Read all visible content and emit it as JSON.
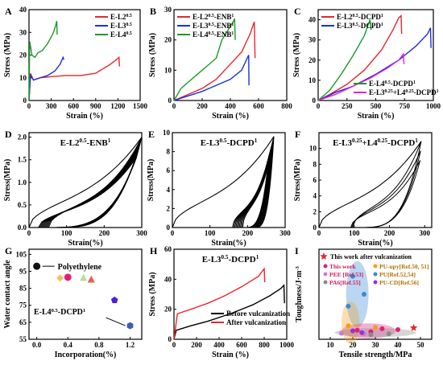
{
  "panels": {
    "A": {
      "letter": "A",
      "xlabel": "Strain (%)",
      "ylabel": "Stress (MPa)",
      "xticks": [
        "0",
        "300",
        "600",
        "900",
        "1200",
        "1500"
      ],
      "yticks": [
        "0",
        "10",
        "20",
        "30",
        "40"
      ],
      "legend": [
        {
          "label": "E-L2",
          "sup": "0.5",
          "color": "#e8262a"
        },
        {
          "label": "E-L3",
          "sup": "0.5",
          "color": "#1f2fd6"
        },
        {
          "label": "E-L4",
          "sup": "0.5",
          "color": "#1a9a26"
        }
      ]
    },
    "B": {
      "letter": "B",
      "xlabel": "Strain (%)",
      "ylabel": "Stress (MPa)",
      "xticks": [
        "0",
        "200",
        "400",
        "600",
        "800"
      ],
      "yticks": [
        "0",
        "10",
        "20",
        "30"
      ],
      "legend": [
        {
          "label": "E-L2",
          "sup": "0.5",
          "tail": "-ENB",
          "sup2": "1",
          "color": "#e8262a"
        },
        {
          "label": "E-L3",
          "sup": "0.5",
          "tail": "-ENB",
          "sup2": "1",
          "color": "#1f2fd6"
        },
        {
          "label": "E-L4",
          "sup": "0.5",
          "tail": "-ENB",
          "sup2": "1",
          "color": "#1a9a26"
        }
      ]
    },
    "C": {
      "letter": "C",
      "xlabel": "Strain (%)",
      "ylabel": "Stress (MPa)",
      "xticks": [
        "0",
        "250",
        "500",
        "750",
        "1000"
      ],
      "yticks": [
        "0",
        "10",
        "20",
        "30",
        "40"
      ],
      "legend": [
        {
          "label": "E-L2",
          "sup": "0.5",
          "tail": "-DCPD",
          "sup2": "1",
          "color": "#e8262a"
        },
        {
          "label": "E-L3",
          "sup": "0.5",
          "tail": "-DCPD",
          "sup2": "1",
          "color": "#1f2fd6"
        },
        {
          "label": "E-L4",
          "sup": "0.5",
          "tail": "-DCPD",
          "sup2": "1",
          "color": "#1a9a26"
        },
        {
          "label": "E-L3",
          "sup": "0.25",
          "tail": "+L4",
          "sup2": "0.25",
          "tail2": "-DCPD",
          "sup3": "1",
          "color": "#e020e0"
        }
      ]
    },
    "D": {
      "letter": "D",
      "title": "E-L2",
      "title_sup": "0.5",
      "title_tail": "-ENB",
      "title_sup2": "1",
      "xlabel": "Strain(%)",
      "ylabel": "Stress(MPa)",
      "xticks": [
        "0",
        "100",
        "200",
        "300"
      ],
      "yticks": [
        "0.0",
        "0.5",
        "1.0",
        "1.5",
        "2.0"
      ]
    },
    "E": {
      "letter": "E",
      "title": "E-L3",
      "title_sup": "0.5",
      "title_tail": "-DCPD",
      "title_sup2": "1",
      "xlabel": "Strain(%)",
      "ylabel": "Stress(MPa)",
      "xticks": [
        "0",
        "100",
        "200",
        "300"
      ],
      "yticks": [
        "0",
        "2",
        "4",
        "6",
        "8",
        "10"
      ]
    },
    "F": {
      "letter": "F",
      "title": "E-L3",
      "title_sup": "0.25",
      "title_tail": "+L4",
      "title_sup2": "0.25",
      "title_tail2": "-DCPD",
      "title_sup3": "1",
      "xlabel": "Strain(%)",
      "ylabel": "Stress(MPa)",
      "xticks": [
        "0",
        "100",
        "200",
        "300"
      ],
      "yticks": [
        "0",
        "2",
        "4",
        "6",
        "8",
        "10"
      ]
    },
    "G": {
      "letter": "G",
      "xlabel": "Incorporation(%)",
      "ylabel": "Water contact angle",
      "xticks": [
        "0.0",
        "0.4",
        "0.8",
        "1.2"
      ],
      "yticks": [
        "55",
        "65",
        "75",
        "85",
        "95",
        "105"
      ],
      "annotation_pe": "Polyethylene",
      "annotation_l4": "E-L4",
      "annotation_l4_sup": "0.5",
      "annotation_l4_tail": "-DCPD",
      "annotation_l4_sup2": "1"
    },
    "H": {
      "letter": "H",
      "title": "E-L3",
      "title_sup": "0.5",
      "title_tail": "-DCPD",
      "title_sup2": "1",
      "xlabel": "Strain (%)",
      "ylabel": "Stress (MPa)",
      "xticks": [
        "0",
        "200",
        "400",
        "600",
        "800",
        "1000"
      ],
      "yticks": [
        "0",
        "20",
        "40",
        "60"
      ],
      "legend": [
        {
          "label": "Before vulcanization",
          "color": "#000000"
        },
        {
          "label": "After vulcanization",
          "color": "#e8262a"
        }
      ]
    },
    "I": {
      "letter": "I",
      "xlabel": "Tensile strength/MPa",
      "ylabel": "Toughness/J·m",
      "ylabel_sup": "-3",
      "xticks": [
        "10",
        "20",
        "30",
        "40",
        "50"
      ],
      "star_label": "This work after vulcanization",
      "legend": [
        {
          "label": "This work",
          "color": "#e0207a"
        },
        {
          "label": "PU-upy[Ref.50, 51]",
          "color": "#f0a020"
        },
        {
          "label": "PEE [Ref.53]",
          "color": "#d07ad0"
        },
        {
          "label": "PU[Ref.52,54]",
          "color": "#3a8ad8"
        },
        {
          "label": "PA6[Ref.55]",
          "color": "#8a8a8a"
        },
        {
          "label": "PU-CD[Ref.56]",
          "color": "#9a30d8"
        }
      ]
    }
  },
  "chart_data": [
    {
      "panel": "A",
      "type": "line",
      "xlim": [
        0,
        1500
      ],
      "ylim": [
        0,
        40
      ],
      "series": [
        {
          "name": "E-L2^0.5",
          "color": "#e8262a",
          "x": [
            0,
            20,
            60,
            150,
            300,
            500,
            700,
            900,
            1000,
            1100,
            1180,
            1215,
            1220
          ],
          "y": [
            0,
            12,
            9,
            10,
            10.5,
            11,
            11,
            12,
            14,
            16,
            18,
            19,
            15
          ]
        },
        {
          "name": "E-L3^0.5",
          "color": "#1f2fd6",
          "x": [
            0,
            20,
            60,
            150,
            250,
            350,
            420,
            460,
            470
          ],
          "y": [
            0,
            11,
            9,
            10,
            11,
            13,
            16,
            19,
            18
          ]
        },
        {
          "name": "E-L4^0.5",
          "color": "#1a9a26",
          "x": [
            0,
            10,
            40,
            80,
            120,
            180,
            250,
            300,
            330,
            360,
            375,
            380
          ],
          "y": [
            0,
            26,
            20,
            19,
            21,
            22,
            25,
            28,
            30,
            33,
            35,
            29
          ]
        }
      ]
    },
    {
      "panel": "B",
      "type": "line",
      "xlim": [
        0,
        800
      ],
      "ylim": [
        0,
        30
      ],
      "series": [
        {
          "name": "E-L2^0.5-ENB^1",
          "color": "#e8262a",
          "x": [
            0,
            100,
            200,
            300,
            400,
            480,
            540,
            570,
            575
          ],
          "y": [
            0,
            2,
            4,
            7,
            12,
            16,
            22,
            26,
            14
          ]
        },
        {
          "name": "E-L3^0.5-ENB^1",
          "color": "#1f2fd6",
          "x": [
            0,
            100,
            200,
            300,
            400,
            480,
            520,
            530,
            532
          ],
          "y": [
            0,
            1.5,
            3,
            5,
            7,
            10,
            14,
            15,
            5
          ]
        },
        {
          "name": "E-L4^0.5-ENB^1",
          "color": "#1a9a26",
          "x": [
            0,
            50,
            100,
            200,
            300,
            340,
            380,
            420,
            430,
            435
          ],
          "y": [
            0,
            4,
            6,
            10,
            14,
            20,
            23,
            26,
            27,
            20
          ]
        }
      ]
    },
    {
      "panel": "C",
      "type": "line",
      "xlim": [
        0,
        1000
      ],
      "ylim": [
        0,
        45
      ],
      "series": [
        {
          "name": "E-L2^0.5-DCPD^1",
          "color": "#e8262a",
          "x": [
            0,
            100,
            250,
            400,
            550,
            650,
            700,
            720,
            725
          ],
          "y": [
            0,
            3,
            8,
            15,
            25,
            35,
            41,
            42,
            33
          ]
        },
        {
          "name": "E-L3^0.5-DCPD^1",
          "color": "#1f2fd6",
          "x": [
            0,
            150,
            300,
            500,
            700,
            850,
            950,
            975,
            980
          ],
          "y": [
            0,
            4,
            7,
            13,
            20,
            27,
            33,
            36,
            26
          ]
        },
        {
          "name": "E-L4^0.5-DCPD^1",
          "color": "#1a9a26",
          "x": [
            0,
            100,
            200,
            300,
            400,
            450,
            460
          ],
          "y": [
            0,
            5,
            13,
            22,
            32,
            40,
            35
          ]
        },
        {
          "name": "E-L3^0.25+L4^0.25-DCPD^1",
          "color": "#e020e0",
          "x": [
            0,
            150,
            300,
            450,
            600,
            700,
            740,
            745
          ],
          "y": [
            0,
            3,
            7,
            11,
            16,
            20,
            23,
            18
          ]
        }
      ]
    },
    {
      "panel": "D",
      "type": "line",
      "xlim": [
        0,
        300
      ],
      "ylim": [
        0,
        2.1
      ],
      "note": "cyclic loading, ~10 loops",
      "series": [
        {
          "name": "loading-unloading cycles",
          "color": "#000000",
          "x": [
            0,
            20,
            100,
            200,
            280,
            300
          ],
          "y": [
            0,
            0.7,
            0.85,
            1.1,
            1.6,
            2.0
          ]
        }
      ]
    },
    {
      "panel": "E",
      "type": "line",
      "xlim": [
        0,
        300
      ],
      "ylim": [
        0,
        10
      ],
      "note": "cyclic loading, ~10 loops",
      "series": [
        {
          "name": "loading-unloading cycles",
          "color": "#000000",
          "x": [
            0,
            20,
            100,
            200,
            250,
            270
          ],
          "y": [
            0,
            3.5,
            5,
            6.5,
            8.2,
            9.6
          ]
        }
      ]
    },
    {
      "panel": "F",
      "type": "line",
      "xlim": [
        0,
        320
      ],
      "ylim": [
        0,
        12
      ],
      "note": "cyclic loading, ~3 loops",
      "series": [
        {
          "name": "loading-unloading cycles",
          "color": "#000000",
          "x": [
            0,
            20,
            100,
            200,
            260,
            290
          ],
          "y": [
            0,
            2.5,
            4.5,
            6.5,
            8.8,
            10.9
          ]
        }
      ]
    },
    {
      "panel": "G",
      "type": "scatter",
      "xlim": [
        -0.1,
        1.35
      ],
      "ylim": [
        55,
        108
      ],
      "points": [
        {
          "x": 0.0,
          "y": 98,
          "color": "#111111",
          "marker": "circle"
        },
        {
          "x": 0.3,
          "y": 91,
          "color": "#f0c060",
          "marker": "diamond"
        },
        {
          "x": 0.4,
          "y": 91.5,
          "color": "#e0207a",
          "marker": "circle"
        },
        {
          "x": 0.6,
          "y": 91.5,
          "color": "#b0e0a0",
          "marker": "triangle-up"
        },
        {
          "x": 0.7,
          "y": 90.5,
          "color": "#e86050",
          "marker": "triangle-up"
        },
        {
          "x": 1.0,
          "y": 78,
          "color": "#4a20e0",
          "marker": "pentagon"
        },
        {
          "x": 1.2,
          "y": 63,
          "color": "#3a60b0",
          "marker": "hexagon"
        }
      ]
    },
    {
      "panel": "H",
      "type": "line",
      "xlim": [
        0,
        1000
      ],
      "ylim": [
        0,
        60
      ],
      "series": [
        {
          "name": "Before vulcanization",
          "color": "#000000",
          "x": [
            0,
            20,
            150,
            300,
            500,
            700,
            850,
            950,
            975,
            980
          ],
          "y": [
            0,
            6,
            9,
            12,
            17,
            23,
            29,
            34,
            36,
            24
          ]
        },
        {
          "name": "After vulcanization",
          "color": "#e8262a",
          "x": [
            0,
            30,
            150,
            300,
            450,
            600,
            750,
            800,
            805
          ],
          "y": [
            0,
            17,
            20,
            24,
            29,
            35,
            42,
            47,
            38
          ]
        }
      ]
    },
    {
      "panel": "I",
      "type": "scatter",
      "xlim": [
        5,
        55
      ],
      "ylim": [
        0,
        300
      ],
      "star": {
        "x": 47,
        "y": 38
      },
      "points": [
        {
          "x": 22,
          "y": 30,
          "color": "#e0207a"
        },
        {
          "x": 28,
          "y": 25,
          "color": "#e0207a"
        },
        {
          "x": 33,
          "y": 35,
          "color": "#e0207a"
        },
        {
          "x": 40,
          "y": 32,
          "color": "#e0207a"
        },
        {
          "x": 18,
          "y": 45,
          "color": "#f0a020"
        },
        {
          "x": 30,
          "y": 40,
          "color": "#f0a020"
        },
        {
          "x": 15,
          "y": 20,
          "color": "#d07ad0"
        },
        {
          "x": 25,
          "y": 18,
          "color": "#d07ad0"
        },
        {
          "x": 20,
          "y": 210,
          "color": "#3a8ad8"
        },
        {
          "x": 25,
          "y": 150,
          "color": "#3a8ad8"
        },
        {
          "x": 18,
          "y": 110,
          "color": "#3a8ad8"
        },
        {
          "x": 28,
          "y": 15,
          "color": "#8a8a8a"
        },
        {
          "x": 36,
          "y": 18,
          "color": "#8a8a8a"
        },
        {
          "x": 20,
          "y": 28,
          "color": "#9a30d8"
        },
        {
          "x": 24,
          "y": 22,
          "color": "#9a30d8"
        }
      ],
      "ellipses": [
        {
          "cx": 22,
          "cy": 150,
          "rx": 5,
          "ry": 110,
          "color": "#3a8ad8"
        },
        {
          "cx": 27,
          "cy": 28,
          "rx": 12,
          "ry": 25,
          "color": "#e0207a"
        },
        {
          "cx": 19,
          "cy": 55,
          "rx": 4,
          "ry": 70,
          "color": "#f0a020"
        },
        {
          "cx": 30,
          "cy": 22,
          "rx": 18,
          "ry": 15,
          "color": "#8a8a8a"
        }
      ]
    }
  ]
}
